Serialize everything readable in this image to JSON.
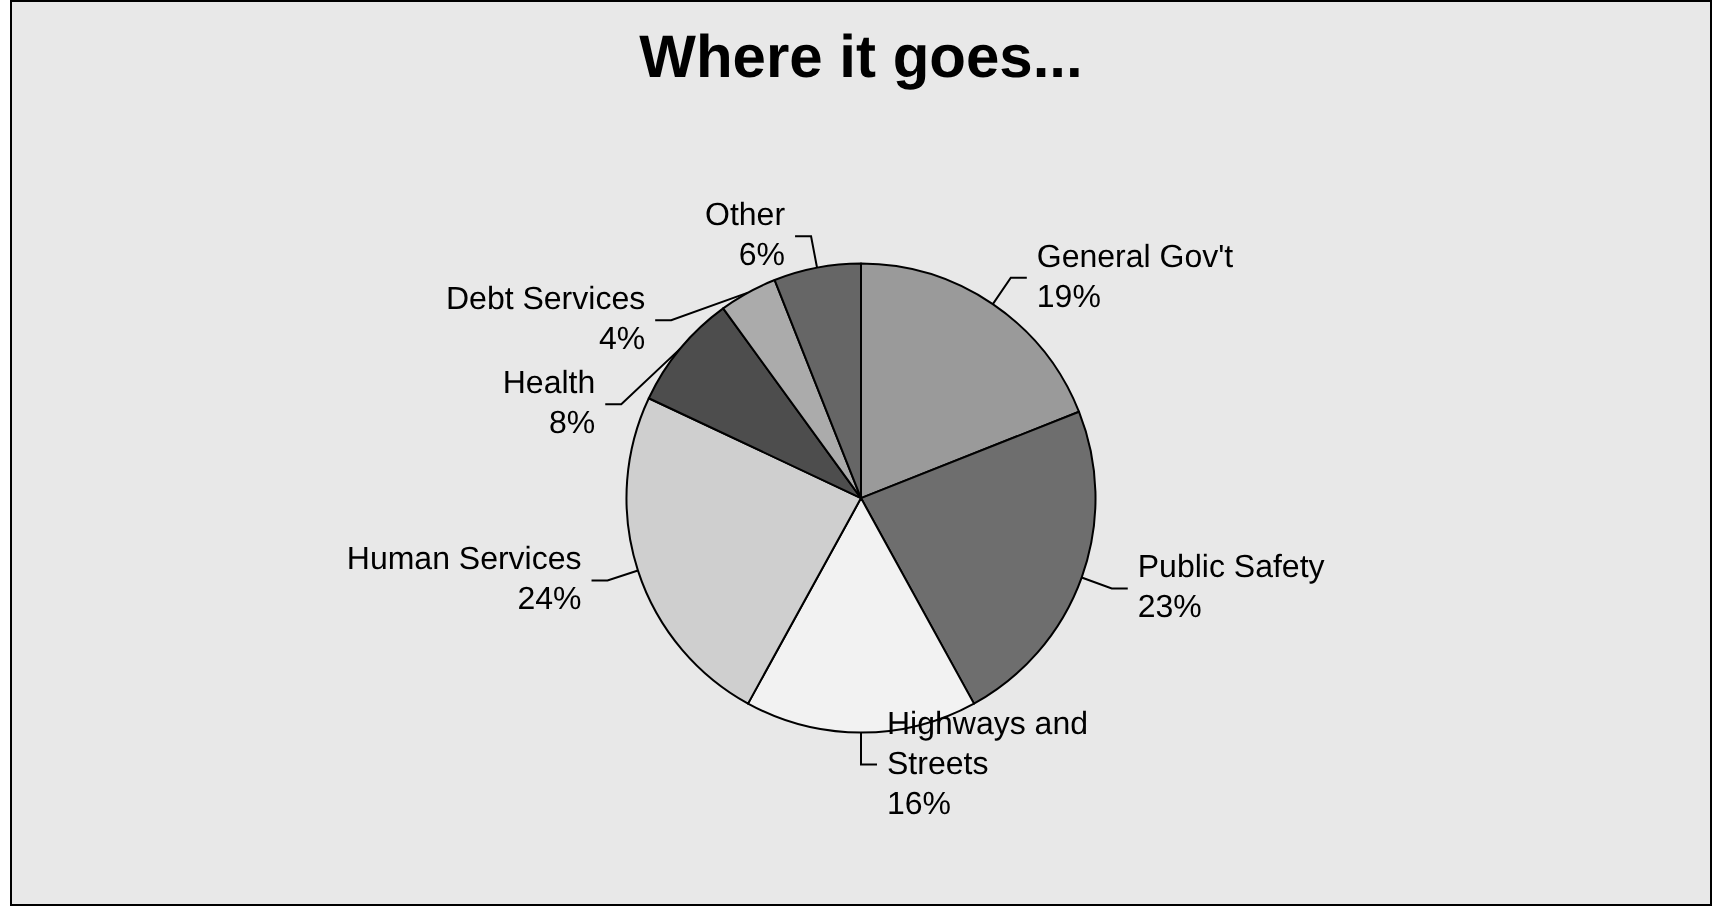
{
  "chart_data": {
    "type": "pie",
    "title": "Where it goes...",
    "categories": [
      "General Gov't",
      "Public Safety",
      "Highways and Streets",
      "Human Services",
      "Health",
      "Debt Services",
      "Other"
    ],
    "values": [
      19,
      23,
      16,
      24,
      8,
      4,
      6
    ],
    "value_labels": [
      "19%",
      "23%",
      "16%",
      "24%",
      "8%",
      "4%",
      "6%"
    ],
    "colors": [
      "#9a9a9a",
      "#6e6e6e",
      "#f2f2f2",
      "#cfcfcf",
      "#4d4d4d",
      "#ababab",
      "#666666"
    ]
  }
}
